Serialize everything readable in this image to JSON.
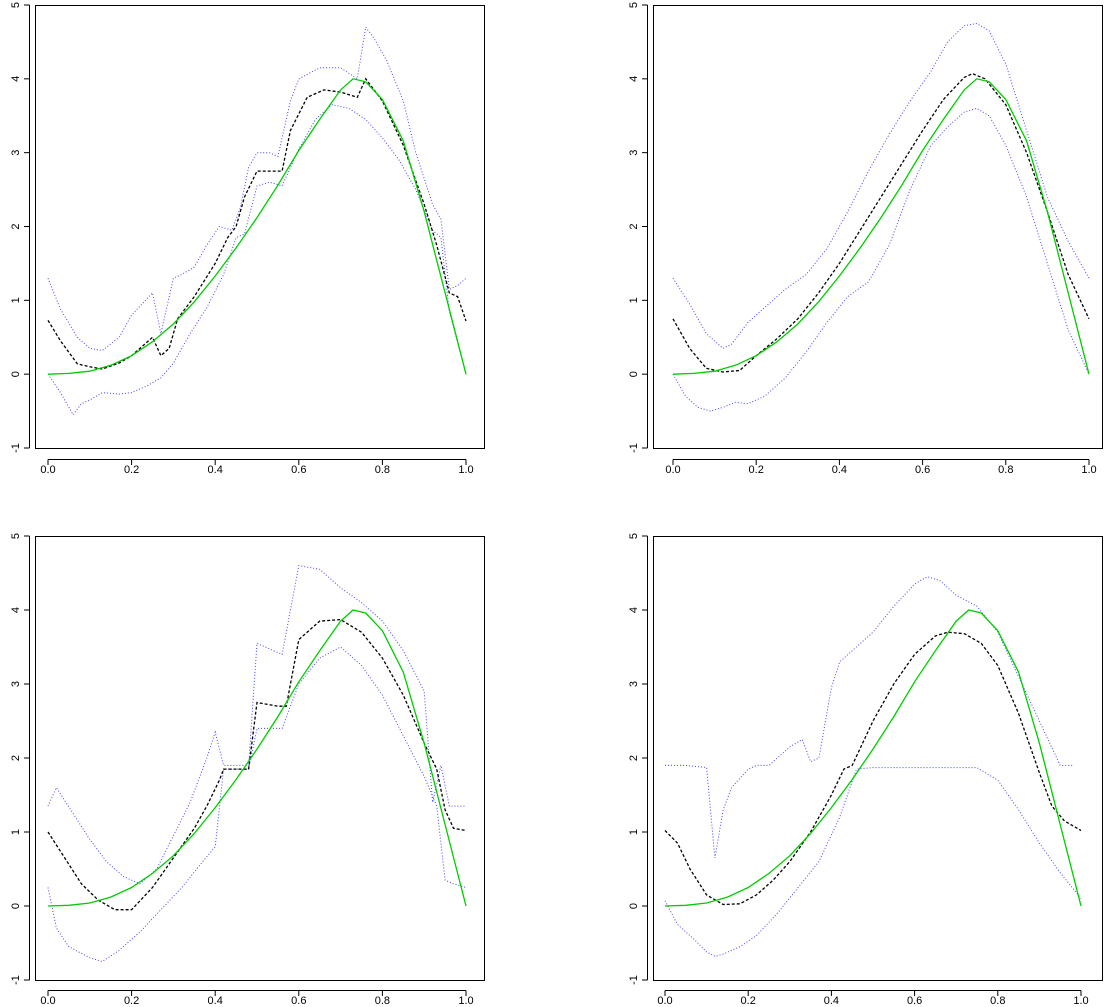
{
  "chart_data": [
    {
      "type": "line",
      "title": "",
      "xlabel": "",
      "ylabel": "",
      "xlim": [
        0.0,
        1.0
      ],
      "ylim": [
        -1,
        5
      ],
      "xticks": [
        "0.0",
        "0.2",
        "0.4",
        "0.6",
        "0.8",
        "1.0"
      ],
      "yticks": [
        "-1",
        "0",
        "1",
        "2",
        "3",
        "4",
        "5"
      ],
      "grid": false,
      "series": [
        {
          "color": "#00cc00",
          "style": "solid",
          "x": [
            0,
            0.05,
            0.1,
            0.15,
            0.2,
            0.25,
            0.3,
            0.35,
            0.4,
            0.45,
            0.5,
            0.55,
            0.6,
            0.65,
            0.7,
            0.73,
            0.76,
            0.8,
            0.85,
            0.9,
            0.95,
            1.0
          ],
          "y": [
            0,
            0.01,
            0.04,
            0.12,
            0.25,
            0.44,
            0.68,
            0.98,
            1.33,
            1.71,
            2.12,
            2.56,
            3.03,
            3.45,
            3.85,
            4.0,
            3.96,
            3.72,
            3.16,
            2.2,
            1.1,
            0
          ]
        },
        {
          "color": "#000000",
          "style": "dashed",
          "x": [
            0,
            0.03,
            0.07,
            0.1,
            0.13,
            0.17,
            0.2,
            0.25,
            0.27,
            0.29,
            0.31,
            0.35,
            0.4,
            0.43,
            0.45,
            0.47,
            0.5,
            0.53,
            0.56,
            0.58,
            0.62,
            0.66,
            0.7,
            0.74,
            0.76,
            0.8,
            0.85,
            0.9,
            0.93,
            0.96,
            0.98,
            1.0
          ],
          "y": [
            0.73,
            0.45,
            0.14,
            0.1,
            0.07,
            0.15,
            0.25,
            0.5,
            0.25,
            0.35,
            0.75,
            1.05,
            1.5,
            1.85,
            2.0,
            2.4,
            2.75,
            2.75,
            2.75,
            3.3,
            3.75,
            3.85,
            3.82,
            3.75,
            4.0,
            3.7,
            3.1,
            2.3,
            1.75,
            1.1,
            1.05,
            0.72
          ]
        },
        {
          "color": "#4444ff",
          "style": "dotted",
          "x": [
            0,
            0.03,
            0.07,
            0.1,
            0.13,
            0.17,
            0.2,
            0.25,
            0.27,
            0.3,
            0.32,
            0.35,
            0.38,
            0.41,
            0.44,
            0.46,
            0.48,
            0.5,
            0.53,
            0.55,
            0.58,
            0.6,
            0.65,
            0.7,
            0.74,
            0.76,
            0.78,
            0.81,
            0.85,
            0.88,
            0.92,
            0.94,
            0.96,
            0.98,
            1.0
          ],
          "y": [
            1.3,
            0.88,
            0.5,
            0.35,
            0.32,
            0.5,
            0.8,
            1.1,
            0.55,
            1.3,
            1.35,
            1.45,
            1.75,
            2.0,
            1.95,
            2.25,
            2.8,
            3.0,
            3.0,
            2.95,
            3.7,
            4.0,
            4.15,
            4.15,
            4.0,
            4.7,
            4.55,
            4.25,
            3.7,
            3.0,
            2.3,
            2.1,
            1.15,
            1.2,
            1.3
          ]
        },
        {
          "color": "#4444ff",
          "style": "dotted",
          "x": [
            0,
            0.03,
            0.06,
            0.08,
            0.1,
            0.13,
            0.17,
            0.2,
            0.24,
            0.27,
            0.3,
            0.34,
            0.38,
            0.42,
            0.45,
            0.47,
            0.5,
            0.53,
            0.56,
            0.6,
            0.64,
            0.68,
            0.72,
            0.76,
            0.8,
            0.84,
            0.88,
            0.92,
            0.94,
            0.96,
            1.0
          ],
          "y": [
            0,
            -0.25,
            -0.55,
            -0.4,
            -0.35,
            -0.25,
            -0.27,
            -0.25,
            -0.15,
            -0.05,
            0.15,
            0.55,
            0.9,
            1.35,
            1.85,
            1.9,
            2.55,
            2.6,
            2.55,
            3.05,
            3.45,
            3.65,
            3.6,
            3.45,
            3.2,
            2.9,
            2.5,
            1.95,
            1.85,
            0.85,
            0
          ]
        }
      ]
    },
    {
      "type": "line",
      "title": "",
      "xlabel": "",
      "ylabel": "",
      "xlim": [
        0.0,
        1.0
      ],
      "ylim": [
        -1,
        5
      ],
      "xticks": [
        "0.0",
        "0.2",
        "0.4",
        "0.6",
        "0.8",
        "1.0"
      ],
      "yticks": [
        "-1",
        "0",
        "1",
        "2",
        "3",
        "4",
        "5"
      ],
      "grid": false,
      "series": [
        {
          "color": "#00cc00",
          "style": "solid",
          "x": [
            0,
            0.05,
            0.1,
            0.15,
            0.2,
            0.25,
            0.3,
            0.35,
            0.4,
            0.45,
            0.5,
            0.55,
            0.6,
            0.65,
            0.7,
            0.73,
            0.76,
            0.8,
            0.85,
            0.9,
            0.95,
            1.0
          ],
          "y": [
            0,
            0.01,
            0.04,
            0.12,
            0.25,
            0.44,
            0.68,
            0.98,
            1.33,
            1.71,
            2.12,
            2.56,
            3.03,
            3.45,
            3.85,
            4.0,
            3.96,
            3.72,
            3.16,
            2.2,
            1.1,
            0
          ]
        },
        {
          "color": "#000000",
          "style": "dashed",
          "x": [
            0,
            0.04,
            0.08,
            0.12,
            0.16,
            0.2,
            0.25,
            0.3,
            0.35,
            0.4,
            0.45,
            0.5,
            0.55,
            0.6,
            0.65,
            0.7,
            0.72,
            0.75,
            0.8,
            0.85,
            0.9,
            0.95,
            1.0
          ],
          "y": [
            0.75,
            0.35,
            0.08,
            0.03,
            0.05,
            0.25,
            0.48,
            0.75,
            1.1,
            1.5,
            1.95,
            2.4,
            2.85,
            3.3,
            3.72,
            4.02,
            4.07,
            4.0,
            3.65,
            3.0,
            2.2,
            1.35,
            0.75
          ]
        },
        {
          "color": "#4444ff",
          "style": "dotted",
          "x": [
            0,
            0.04,
            0.08,
            0.12,
            0.14,
            0.18,
            0.22,
            0.27,
            0.32,
            0.37,
            0.42,
            0.47,
            0.52,
            0.57,
            0.62,
            0.66,
            0.7,
            0.73,
            0.76,
            0.8,
            0.85,
            0.9,
            0.95,
            1.0
          ],
          "y": [
            1.3,
            0.95,
            0.55,
            0.35,
            0.4,
            0.7,
            0.9,
            1.15,
            1.35,
            1.7,
            2.2,
            2.75,
            3.25,
            3.7,
            4.1,
            4.5,
            4.72,
            4.75,
            4.65,
            4.2,
            3.3,
            2.4,
            1.8,
            1.3
          ]
        },
        {
          "color": "#4444ff",
          "style": "dotted",
          "x": [
            0,
            0.03,
            0.06,
            0.09,
            0.12,
            0.15,
            0.18,
            0.22,
            0.27,
            0.32,
            0.37,
            0.42,
            0.47,
            0.52,
            0.57,
            0.62,
            0.66,
            0.7,
            0.73,
            0.76,
            0.8,
            0.85,
            0.9,
            0.95,
            1.0
          ],
          "y": [
            0,
            -0.3,
            -0.45,
            -0.5,
            -0.45,
            -0.38,
            -0.4,
            -0.3,
            -0.05,
            0.3,
            0.7,
            1.05,
            1.25,
            1.75,
            2.5,
            3.1,
            3.35,
            3.55,
            3.6,
            3.5,
            3.1,
            2.4,
            1.5,
            0.6,
            0
          ]
        }
      ]
    },
    {
      "type": "line",
      "title": "",
      "xlabel": "",
      "ylabel": "",
      "xlim": [
        0.0,
        1.0
      ],
      "ylim": [
        -1,
        5
      ],
      "xticks": [
        "0.0",
        "0.2",
        "0.4",
        "0.6",
        "0.8",
        "1.0"
      ],
      "yticks": [
        "-1",
        "0",
        "1",
        "2",
        "3",
        "4",
        "5"
      ],
      "grid": false,
      "series": [
        {
          "color": "#00cc00",
          "style": "solid",
          "x": [
            0,
            0.05,
            0.1,
            0.15,
            0.2,
            0.25,
            0.3,
            0.35,
            0.4,
            0.45,
            0.5,
            0.55,
            0.6,
            0.65,
            0.7,
            0.73,
            0.76,
            0.8,
            0.85,
            0.9,
            0.95,
            1.0
          ],
          "y": [
            0,
            0.01,
            0.04,
            0.12,
            0.25,
            0.44,
            0.68,
            0.98,
            1.33,
            1.71,
            2.12,
            2.56,
            3.03,
            3.45,
            3.85,
            4.0,
            3.96,
            3.72,
            3.16,
            2.2,
            1.1,
            0
          ]
        },
        {
          "color": "#000000",
          "style": "dashed",
          "x": [
            0,
            0.04,
            0.08,
            0.12,
            0.16,
            0.2,
            0.25,
            0.3,
            0.35,
            0.38,
            0.41,
            0.42,
            0.48,
            0.5,
            0.55,
            0.57,
            0.6,
            0.65,
            0.7,
            0.75,
            0.8,
            0.85,
            0.9,
            0.93,
            0.95,
            0.97,
            1.0
          ],
          "y": [
            1.0,
            0.65,
            0.3,
            0.08,
            -0.05,
            -0.05,
            0.25,
            0.65,
            1.05,
            1.35,
            1.7,
            1.85,
            1.85,
            2.75,
            2.7,
            2.7,
            3.6,
            3.85,
            3.87,
            3.7,
            3.35,
            2.85,
            2.2,
            1.85,
            1.3,
            1.05,
            1.02
          ]
        },
        {
          "color": "#4444ff",
          "style": "dotted",
          "x": [
            0,
            0.02,
            0.06,
            0.1,
            0.14,
            0.18,
            0.22,
            0.26,
            0.3,
            0.34,
            0.38,
            0.4,
            0.42,
            0.48,
            0.5,
            0.54,
            0.56,
            0.6,
            0.65,
            0.7,
            0.75,
            0.8,
            0.85,
            0.9,
            0.92,
            0.94,
            0.96,
            1.0
          ],
          "y": [
            1.35,
            1.6,
            1.25,
            0.9,
            0.6,
            0.4,
            0.3,
            0.5,
            0.95,
            1.4,
            2.0,
            2.35,
            1.9,
            1.9,
            3.55,
            3.45,
            3.4,
            4.6,
            4.55,
            4.3,
            4.1,
            3.85,
            3.45,
            2.9,
            1.4,
            1.9,
            1.35,
            1.35
          ]
        },
        {
          "color": "#4444ff",
          "style": "dotted",
          "x": [
            0,
            0.02,
            0.05,
            0.1,
            0.13,
            0.17,
            0.22,
            0.27,
            0.32,
            0.37,
            0.4,
            0.42,
            0.48,
            0.5,
            0.54,
            0.56,
            0.6,
            0.65,
            0.7,
            0.75,
            0.8,
            0.85,
            0.9,
            0.93,
            0.95,
            0.97,
            1.0
          ],
          "y": [
            0.25,
            -0.3,
            -0.55,
            -0.7,
            -0.75,
            -0.6,
            -0.35,
            -0.05,
            0.25,
            0.6,
            0.8,
            1.85,
            1.85,
            2.4,
            2.4,
            2.4,
            3.0,
            3.35,
            3.5,
            3.25,
            2.85,
            2.3,
            1.75,
            1.35,
            0.35,
            0.3,
            0.25
          ]
        }
      ]
    },
    {
      "type": "line",
      "title": "",
      "xlabel": "",
      "ylabel": "",
      "xlim": [
        0.0,
        1.0
      ],
      "ylim": [
        -1,
        5
      ],
      "xticks": [
        "0.0",
        "0.2",
        "0.4",
        "0.6",
        "0.8",
        "1.0"
      ],
      "yticks": [
        "-1",
        "0",
        "1",
        "2",
        "3",
        "4",
        "5"
      ],
      "grid": false,
      "series": [
        {
          "color": "#00cc00",
          "style": "solid",
          "x": [
            0,
            0.05,
            0.1,
            0.15,
            0.2,
            0.25,
            0.3,
            0.35,
            0.4,
            0.45,
            0.5,
            0.55,
            0.6,
            0.65,
            0.7,
            0.73,
            0.76,
            0.8,
            0.85,
            0.9,
            0.95,
            1.0
          ],
          "y": [
            0,
            0.01,
            0.04,
            0.12,
            0.25,
            0.44,
            0.68,
            0.98,
            1.33,
            1.71,
            2.12,
            2.56,
            3.03,
            3.45,
            3.85,
            4.0,
            3.96,
            3.72,
            3.16,
            2.2,
            1.1,
            0
          ]
        },
        {
          "color": "#000000",
          "style": "dashed",
          "x": [
            0,
            0.03,
            0.06,
            0.1,
            0.14,
            0.18,
            0.22,
            0.26,
            0.3,
            0.35,
            0.4,
            0.43,
            0.45,
            0.5,
            0.55,
            0.6,
            0.65,
            0.68,
            0.72,
            0.76,
            0.8,
            0.85,
            0.9,
            0.93,
            0.96,
            1.0
          ],
          "y": [
            1.02,
            0.85,
            0.5,
            0.15,
            0.02,
            0.03,
            0.15,
            0.35,
            0.6,
            1.0,
            1.5,
            1.85,
            1.9,
            2.5,
            3.0,
            3.4,
            3.65,
            3.7,
            3.68,
            3.55,
            3.25,
            2.6,
            1.8,
            1.35,
            1.15,
            1.02
          ]
        },
        {
          "color": "#4444ff",
          "style": "dotted",
          "x": [
            0,
            0.05,
            0.1,
            0.12,
            0.14,
            0.16,
            0.2,
            0.22,
            0.25,
            0.3,
            0.33,
            0.35,
            0.37,
            0.4,
            0.42,
            0.45,
            0.5,
            0.55,
            0.6,
            0.63,
            0.66,
            0.7,
            0.75,
            0.8,
            0.85,
            0.9,
            0.95,
            0.98
          ],
          "y": [
            1.9,
            1.9,
            1.87,
            0.65,
            1.3,
            1.6,
            1.85,
            1.9,
            1.9,
            2.15,
            2.25,
            1.95,
            2.0,
            2.95,
            3.3,
            3.45,
            3.7,
            4.05,
            4.35,
            4.45,
            4.4,
            4.2,
            4.05,
            3.7,
            3.1,
            2.5,
            1.9,
            1.9
          ]
        },
        {
          "color": "#4444ff",
          "style": "dotted",
          "x": [
            0,
            0.03,
            0.07,
            0.1,
            0.12,
            0.14,
            0.18,
            0.22,
            0.27,
            0.32,
            0.37,
            0.42,
            0.46,
            0.5,
            0.55,
            0.6,
            0.65,
            0.7,
            0.75,
            0.8,
            0.85,
            0.9,
            0.95,
            1.0
          ],
          "y": [
            0.07,
            -0.25,
            -0.45,
            -0.62,
            -0.68,
            -0.65,
            -0.55,
            -0.4,
            -0.1,
            0.25,
            0.6,
            1.2,
            1.85,
            1.87,
            1.87,
            1.87,
            1.87,
            1.87,
            1.87,
            1.7,
            1.3,
            0.85,
            0.45,
            0.1
          ]
        }
      ]
    }
  ]
}
